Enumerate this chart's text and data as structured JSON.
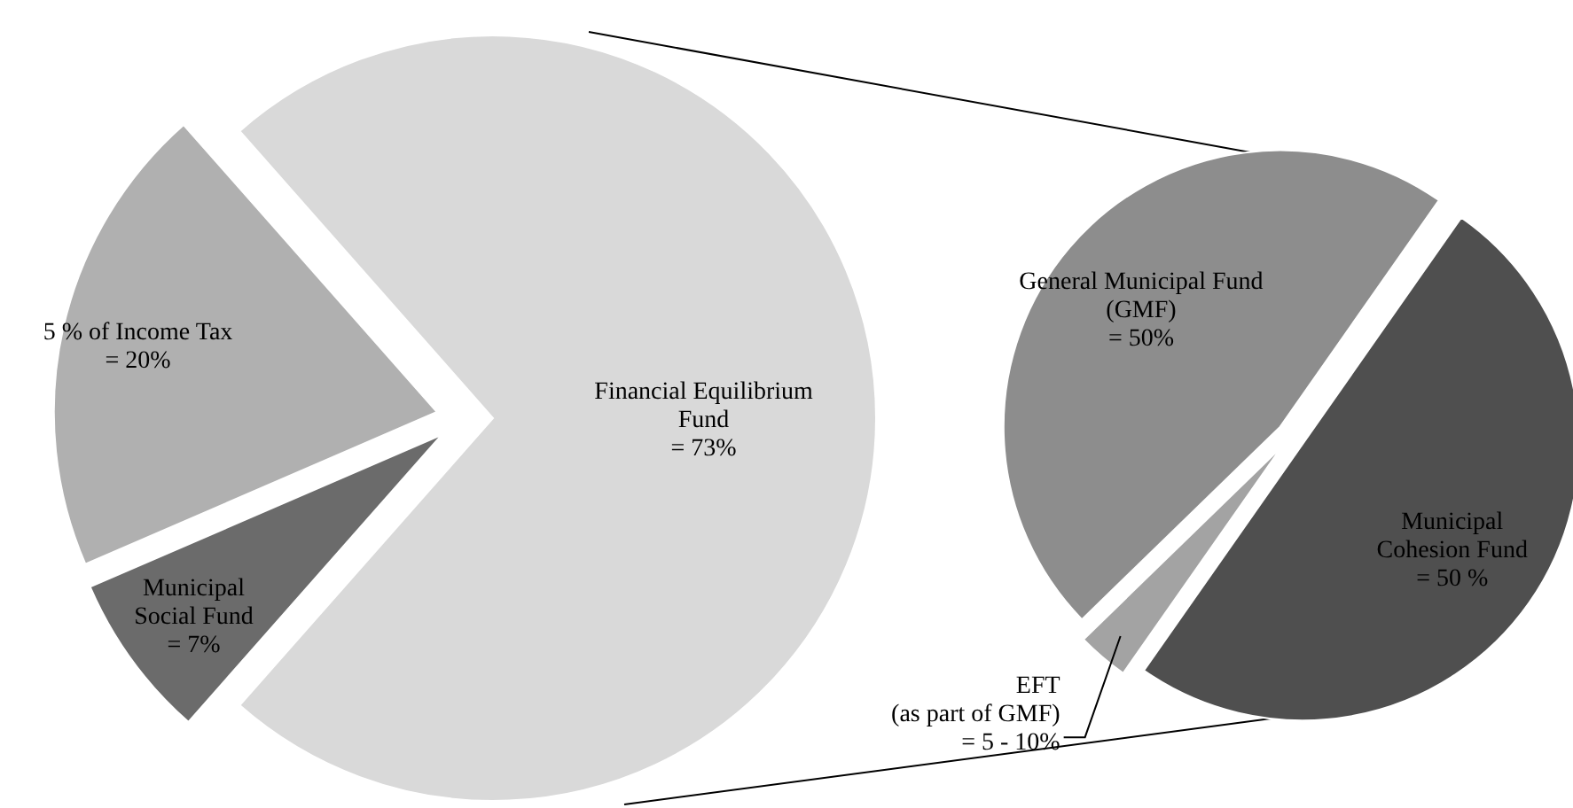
{
  "chart_data": [
    {
      "type": "pie",
      "categories": [
        "Financial Equilibrium\nFund",
        "Municipal\nSocial Fund",
        "5 % of Income Tax"
      ],
      "values": [
        73,
        7,
        20
      ],
      "value_labels": [
        "= 73%",
        "= 7%",
        "= 20%"
      ],
      "colors": [
        "#d9d9d9",
        "#6b6b6b",
        "#b0b0b0"
      ]
    },
    {
      "type": "pie",
      "categories": [
        "Municipal\nCohesion Fund",
        "EFT\n(as part of GMF)\n= 5 - 10%",
        "General Municipal Fund\n(GMF)\n= 50%"
      ],
      "values": [
        50,
        3,
        47
      ],
      "value_labels": [
        "= 50 %",
        null,
        null
      ],
      "colors": [
        "#4f4f4f",
        "#a3a3a3",
        "#8d8d8d"
      ]
    }
  ]
}
